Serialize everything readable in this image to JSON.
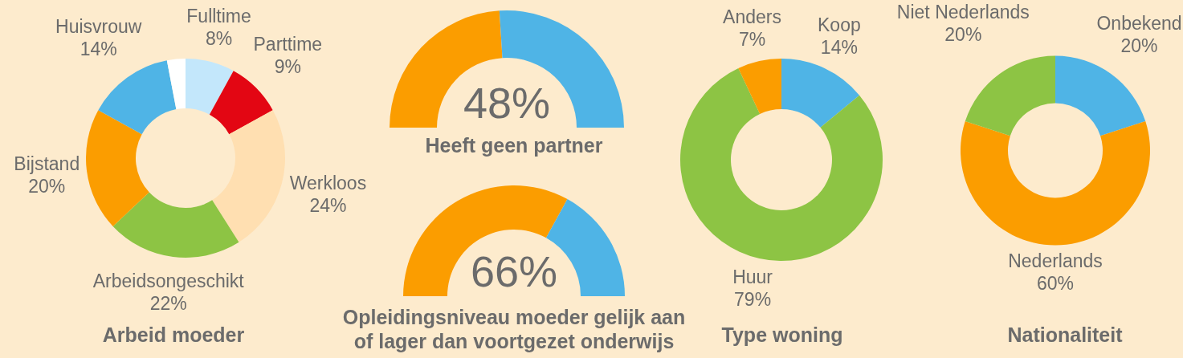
{
  "chart_data": [
    {
      "type": "donut",
      "title": "Arbeid moeder",
      "categories": [
        "Fulltime",
        "Parttime",
        "Werkloos",
        "Arbeidsongeschikt",
        "Bijstand",
        "Huisvrouw",
        null
      ],
      "values": [
        8,
        9,
        24,
        22,
        20,
        14,
        3
      ],
      "colors": [
        "#c3e7fb",
        "#e30613",
        "#ffdfb1",
        "#8dc444",
        "#fb9d00",
        "#4fb4e6",
        "#ffffff"
      ],
      "value_labels": [
        "8%",
        "9%",
        "24%",
        "22%",
        "20%",
        "14%",
        null
      ]
    },
    {
      "type": "donut",
      "title": "Heeft geen partner",
      "categories": [
        null,
        null
      ],
      "values": [
        48,
        52
      ],
      "colors": [
        "#fb9d00",
        "#4fb4e6"
      ],
      "value_labels": [
        "48%",
        null
      ]
    },
    {
      "type": "donut",
      "title": "Opleidingsniveau moeder gelijk aan of lager dan voortgezet onderwijs",
      "categories": [
        null,
        null
      ],
      "values": [
        66,
        34
      ],
      "colors": [
        "#fb9d00",
        "#4fb4e6"
      ],
      "value_labels": [
        "66%",
        null
      ]
    },
    {
      "type": "donut",
      "title": "Type woning",
      "categories": [
        "Koop",
        "Huur",
        "Anders"
      ],
      "values": [
        14,
        79,
        7
      ],
      "colors": [
        "#4fb4e6",
        "#8dc444",
        "#fb9d00"
      ],
      "value_labels": [
        "14%",
        "79%",
        "7%"
      ]
    },
    {
      "type": "donut",
      "title": "Nationaliteit",
      "categories": [
        "Onbekend",
        "Nederlands",
        "Niet Nederlands"
      ],
      "values": [
        20,
        60,
        20
      ],
      "colors": [
        "#4fb4e6",
        "#fb9d00",
        "#8dc444"
      ],
      "value_labels": [
        "20%",
        "60%",
        "20%"
      ]
    }
  ]
}
